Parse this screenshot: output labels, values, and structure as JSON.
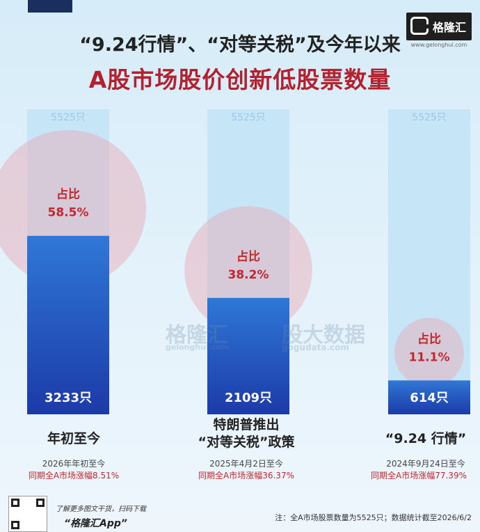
{
  "header": {
    "title_line1": "“9.24行情”、“对等关税”及今年以来",
    "title_line2": "A股市场股价创新低股票数量",
    "logo_text": "格隆汇",
    "logo_url": "www.gelonghui.com"
  },
  "watermark": {
    "brand": "格隆汇",
    "brand_url": "gelonghui.com",
    "data_brand": "股大数据",
    "data_url": "gogudata.com"
  },
  "chart_data": {
    "type": "bar",
    "categories": [
      "年初至今",
      "特朗普推出“对等关税”政策",
      "“9.24 行情”"
    ],
    "values": [
      3233,
      2109,
      614
    ],
    "value_labels": [
      "3233只",
      "2109只",
      "614只"
    ],
    "total": 5525,
    "total_label": "5525只",
    "share_label": "占比",
    "shares": [
      "58.5%",
      "38.2%",
      "11.1%"
    ],
    "ylim": [
      0,
      5525
    ],
    "colors": {
      "bar_top": "#2f78d8",
      "bar_bottom": "#1c3aa8",
      "track": "#c6e6f8",
      "circle": "#e8a6b2",
      "share_text": "#c0282e"
    }
  },
  "captions": [
    {
      "lines": [
        "年初至今"
      ],
      "period": "2026年年初至今",
      "gain": "同期全A市场涨幅8.51%"
    },
    {
      "lines": [
        "特朗普推出",
        "“对等关税”政策"
      ],
      "period": "2025年4月2日至今",
      "gain": "同期全A市场涨幅36.37%"
    },
    {
      "lines": [
        "“9.24 行情”"
      ],
      "period": "2024年9月24日至今",
      "gain": "同期全A市场涨幅77.39%"
    }
  ],
  "footer": {
    "promo_line1": "了解更多图文干货，扫码下载",
    "promo_line2": "“格隆汇App”",
    "note": "注：全A市场股票数量为5525只；数据统计截至2026/6/2"
  }
}
